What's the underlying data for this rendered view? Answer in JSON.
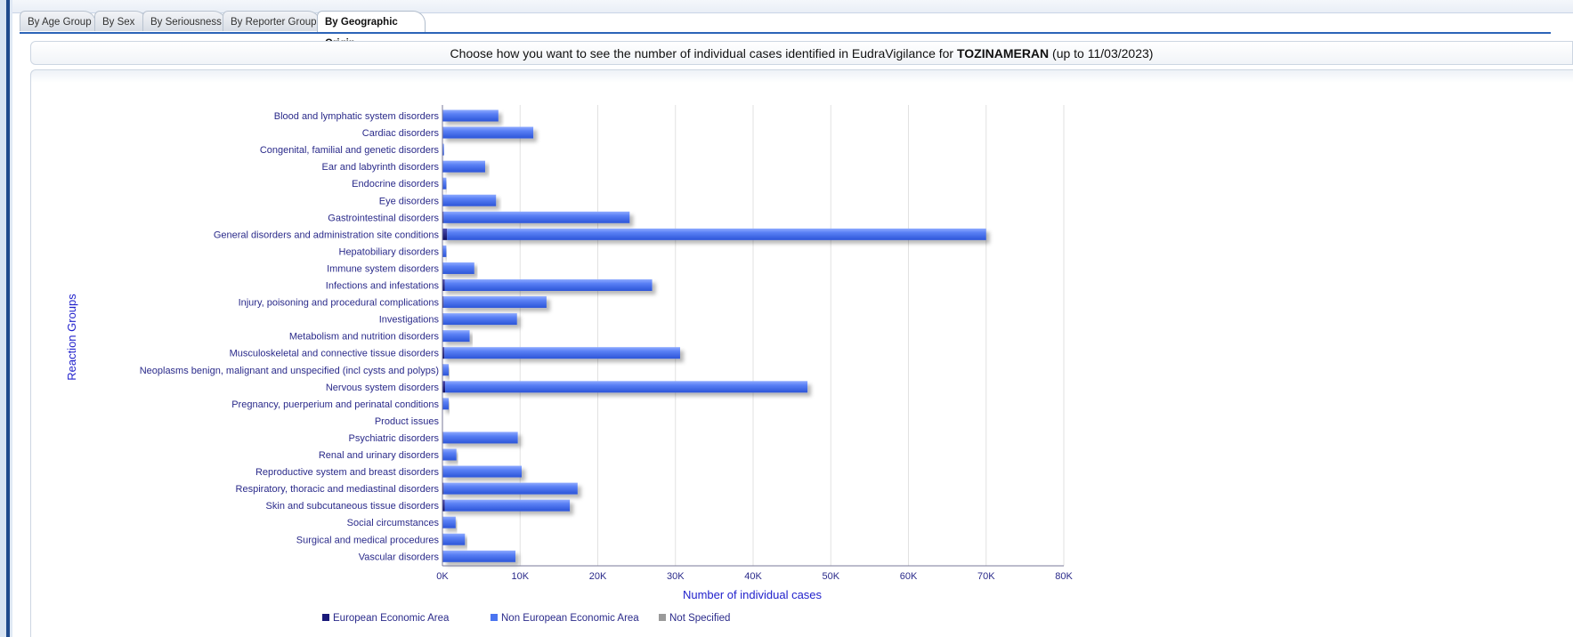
{
  "tabs": [
    {
      "label": "By Age Group",
      "active": false
    },
    {
      "label": "By Sex",
      "active": false
    },
    {
      "label": "By Seriousness",
      "active": false
    },
    {
      "label": "By Reporter Group",
      "active": false
    },
    {
      "label": "By Geographic Origin",
      "active": true
    }
  ],
  "header": {
    "prefix": "Choose how you want to see the number of individual cases identified in EudraVigilance for ",
    "product": "TOZINAMERAN",
    "suffix": " (up to 11/03/2023)"
  },
  "colors": {
    "eea": "#1a1a7a",
    "non_eea": "#4a74f0",
    "not_specified": "#9a9a9a"
  },
  "chart_data": {
    "type": "bar",
    "orientation": "horizontal",
    "stacked": true,
    "ylabel": "Reaction Groups",
    "xlabel": "Number of individual cases",
    "xlim": [
      0,
      80000
    ],
    "xticks": [
      0,
      10000,
      20000,
      30000,
      40000,
      50000,
      60000,
      70000,
      80000
    ],
    "xtick_labels": [
      "0K",
      "10K",
      "20K",
      "30K",
      "40K",
      "50K",
      "60K",
      "70K",
      "80K"
    ],
    "grid": true,
    "legend_position": "bottom",
    "categories": [
      "Blood and lymphatic system disorders",
      "Cardiac disorders",
      "Congenital, familial and genetic disorders",
      "Ear and labyrinth disorders",
      "Endocrine disorders",
      "Eye disorders",
      "Gastrointestinal disorders",
      "General disorders and administration site conditions",
      "Hepatobiliary disorders",
      "Immune system disorders",
      "Infections and infestations",
      "Injury, poisoning and procedural complications",
      "Investigations",
      "Metabolism and nutrition disorders",
      "Musculoskeletal and connective tissue disorders",
      "Neoplasms benign, malignant and unspecified (incl cysts and polyps)",
      "Nervous system disorders",
      "Pregnancy, puerperium and perinatal conditions",
      "Product issues",
      "Psychiatric disorders",
      "Renal and urinary disorders",
      "Reproductive system and breast disorders",
      "Respiratory, thoracic and mediastinal disorders",
      "Skin and subcutaneous tissue disorders",
      "Social circumstances",
      "Surgical and medical procedures",
      "Vascular disorders"
    ],
    "series": [
      {
        "name": "European Economic Area",
        "values": [
          50,
          80,
          10,
          40,
          10,
          40,
          150,
          600,
          20,
          60,
          300,
          150,
          90,
          40,
          250,
          20,
          350,
          10,
          0,
          90,
          30,
          70,
          150,
          300,
          20,
          30,
          70
        ]
      },
      {
        "name": "Non European Economic Area",
        "values": [
          7150,
          11620,
          190,
          5460,
          490,
          6860,
          23950,
          69400,
          480,
          4040,
          26700,
          13250,
          9510,
          3460,
          30350,
          780,
          46650,
          790,
          0,
          9610,
          1770,
          10130,
          17250,
          16100,
          1680,
          2870,
          9330
        ]
      },
      {
        "name": "Not Specified",
        "values": [
          0,
          0,
          0,
          0,
          0,
          0,
          0,
          0,
          0,
          0,
          0,
          0,
          0,
          0,
          0,
          0,
          0,
          0,
          0,
          0,
          0,
          0,
          0,
          0,
          0,
          0,
          0
        ]
      }
    ]
  }
}
